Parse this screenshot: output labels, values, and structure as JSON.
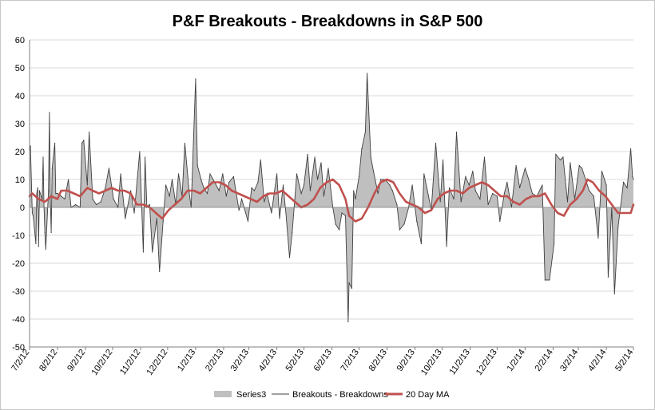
{
  "chart_data": {
    "type": "line",
    "title": "P&F Breakouts - Breakdowns in S&P 500",
    "xlabel": "",
    "ylabel": "",
    "ylim": [
      -50,
      60
    ],
    "y_ticks": [
      60,
      50,
      40,
      30,
      20,
      10,
      0,
      -10,
      -20,
      -30,
      -40,
      -50
    ],
    "x_ticks": [
      "7/2/12",
      "8/2/12",
      "9/2/12",
      "10/2/12",
      "11/2/12",
      "12/2/12",
      "1/2/13",
      "2/2/13",
      "3/2/13",
      "4/2/13",
      "5/2/13",
      "6/2/13",
      "7/2/13",
      "8/2/13",
      "9/2/13",
      "10/2/13",
      "11/2/13",
      "12/2/13",
      "1/2/14",
      "2/2/14",
      "3/2/14",
      "4/2/14",
      "5/2/14"
    ],
    "x_range": [
      "2012-07-02",
      "2014-05-02"
    ],
    "grid": "horizontal",
    "legend_position": "bottom",
    "series": [
      {
        "name": "Series3",
        "kind": "area",
        "color": "#bfbfbf",
        "note_values": "same values as Breakouts - Breakdowns"
      },
      {
        "name": "Breakouts - Breakdowns",
        "kind": "line",
        "color": "#404040",
        "points": [
          [
            "2012-07-02",
            20
          ],
          [
            "2012-07-03",
            22
          ],
          [
            "2012-07-05",
            -2
          ],
          [
            "2012-07-06",
            -3
          ],
          [
            "2012-07-09",
            -13
          ],
          [
            "2012-07-10",
            5
          ],
          [
            "2012-07-11",
            7
          ],
          [
            "2012-07-12",
            -14
          ],
          [
            "2012-07-13",
            6
          ],
          [
            "2012-07-16",
            3
          ],
          [
            "2012-07-17",
            18
          ],
          [
            "2012-07-18",
            0
          ],
          [
            "2012-07-19",
            -9
          ],
          [
            "2012-07-20",
            -15
          ],
          [
            "2012-07-23",
            6
          ],
          [
            "2012-07-24",
            34
          ],
          [
            "2012-07-25",
            3
          ],
          [
            "2012-07-26",
            -9
          ],
          [
            "2012-07-27",
            14
          ],
          [
            "2012-07-30",
            23
          ],
          [
            "2012-07-31",
            5
          ],
          [
            "2012-08-02",
            5
          ],
          [
            "2012-08-06",
            4
          ],
          [
            "2012-08-10",
            3
          ],
          [
            "2012-08-14",
            10
          ],
          [
            "2012-08-17",
            0
          ],
          [
            "2012-08-22",
            1
          ],
          [
            "2012-08-27",
            0
          ],
          [
            "2012-08-29",
            23
          ],
          [
            "2012-08-31",
            24
          ],
          [
            "2012-09-04",
            8
          ],
          [
            "2012-09-06",
            27
          ],
          [
            "2012-09-10",
            3
          ],
          [
            "2012-09-14",
            1
          ],
          [
            "2012-09-19",
            2
          ],
          [
            "2012-09-24",
            7
          ],
          [
            "2012-09-28",
            14
          ],
          [
            "2012-10-03",
            3
          ],
          [
            "2012-10-08",
            0
          ],
          [
            "2012-10-11",
            12
          ],
          [
            "2012-10-16",
            -4
          ],
          [
            "2012-10-22",
            6
          ],
          [
            "2012-10-26",
            -2
          ],
          [
            "2012-11-01",
            20
          ],
          [
            "2012-11-05",
            -16
          ],
          [
            "2012-11-07",
            18
          ],
          [
            "2012-11-09",
            0
          ],
          [
            "2012-11-12",
            1
          ],
          [
            "2012-11-15",
            -16
          ],
          [
            "2012-11-20",
            -4
          ],
          [
            "2012-11-23",
            -23
          ],
          [
            "2012-11-27",
            -5
          ],
          [
            "2012-11-30",
            8
          ],
          [
            "2012-12-04",
            4
          ],
          [
            "2012-12-07",
            10
          ],
          [
            "2012-12-11",
            1
          ],
          [
            "2012-12-14",
            12
          ],
          [
            "2012-12-18",
            4
          ],
          [
            "2012-12-21",
            23
          ],
          [
            "2012-12-26",
            5
          ],
          [
            "2012-12-28",
            0
          ],
          [
            "2013-01-02",
            46
          ],
          [
            "2013-01-04",
            15
          ],
          [
            "2013-01-08",
            10
          ],
          [
            "2013-01-11",
            7
          ],
          [
            "2013-01-15",
            5
          ],
          [
            "2013-01-18",
            12
          ],
          [
            "2013-01-23",
            9
          ],
          [
            "2013-01-28",
            6
          ],
          [
            "2013-02-01",
            12
          ],
          [
            "2013-02-05",
            4
          ],
          [
            "2013-02-08",
            9
          ],
          [
            "2013-02-13",
            11
          ],
          [
            "2013-02-19",
            -1
          ],
          [
            "2013-02-22",
            3
          ],
          [
            "2013-03-01",
            -5
          ],
          [
            "2013-03-05",
            7
          ],
          [
            "2013-03-08",
            6
          ],
          [
            "2013-03-12",
            9
          ],
          [
            "2013-03-15",
            17
          ],
          [
            "2013-03-19",
            2
          ],
          [
            "2013-03-22",
            5
          ],
          [
            "2013-03-27",
            -2
          ],
          [
            "2013-04-02",
            12
          ],
          [
            "2013-04-05",
            -4
          ],
          [
            "2013-04-09",
            8
          ],
          [
            "2013-04-12",
            -2
          ],
          [
            "2013-04-16",
            -18
          ],
          [
            "2013-04-19",
            -9
          ],
          [
            "2013-04-24",
            12
          ],
          [
            "2013-04-29",
            5
          ],
          [
            "2013-05-02",
            8
          ],
          [
            "2013-05-06",
            19
          ],
          [
            "2013-05-09",
            6
          ],
          [
            "2013-05-14",
            18
          ],
          [
            "2013-05-17",
            10
          ],
          [
            "2013-05-21",
            16
          ],
          [
            "2013-05-24",
            4
          ],
          [
            "2013-05-29",
            14
          ],
          [
            "2013-06-03",
            0
          ],
          [
            "2013-06-06",
            -6
          ],
          [
            "2013-06-10",
            -8
          ],
          [
            "2013-06-13",
            -2
          ],
          [
            "2013-06-17",
            -3
          ],
          [
            "2013-06-20",
            -41
          ],
          [
            "2013-06-21",
            -27
          ],
          [
            "2013-06-24",
            -29
          ],
          [
            "2013-06-26",
            6
          ],
          [
            "2013-06-28",
            3
          ],
          [
            "2013-07-02",
            11
          ],
          [
            "2013-07-05",
            21
          ],
          [
            "2013-07-09",
            27
          ],
          [
            "2013-07-11",
            48
          ],
          [
            "2013-07-15",
            18
          ],
          [
            "2013-07-18",
            13
          ],
          [
            "2013-07-23",
            5
          ],
          [
            "2013-07-26",
            10
          ],
          [
            "2013-07-31",
            10
          ],
          [
            "2013-08-05",
            8
          ],
          [
            "2013-08-08",
            6
          ],
          [
            "2013-08-13",
            1
          ],
          [
            "2013-08-16",
            -8
          ],
          [
            "2013-08-21",
            -6
          ],
          [
            "2013-08-26",
            0
          ],
          [
            "2013-08-30",
            8
          ],
          [
            "2013-09-04",
            -5
          ],
          [
            "2013-09-09",
            -13
          ],
          [
            "2013-09-12",
            12
          ],
          [
            "2013-09-17",
            4
          ],
          [
            "2013-09-20",
            -1
          ],
          [
            "2013-09-25",
            23
          ],
          [
            "2013-09-30",
            2
          ],
          [
            "2013-10-03",
            17
          ],
          [
            "2013-10-07",
            -14
          ],
          [
            "2013-10-10",
            7
          ],
          [
            "2013-10-15",
            3
          ],
          [
            "2013-10-18",
            27
          ],
          [
            "2013-10-23",
            2
          ],
          [
            "2013-10-28",
            11
          ],
          [
            "2013-11-01",
            8
          ],
          [
            "2013-11-05",
            13
          ],
          [
            "2013-11-08",
            6
          ],
          [
            "2013-11-13",
            3
          ],
          [
            "2013-11-18",
            18
          ],
          [
            "2013-11-22",
            1
          ],
          [
            "2013-11-27",
            5
          ],
          [
            "2013-12-02",
            4
          ],
          [
            "2013-12-05",
            -5
          ],
          [
            "2013-12-10",
            5
          ],
          [
            "2013-12-13",
            9
          ],
          [
            "2013-12-18",
            0
          ],
          [
            "2013-12-23",
            15
          ],
          [
            "2013-12-27",
            7
          ],
          [
            "2014-01-02",
            14
          ],
          [
            "2014-01-06",
            10
          ],
          [
            "2014-01-10",
            5
          ],
          [
            "2014-01-15",
            4
          ],
          [
            "2014-01-21",
            8
          ],
          [
            "2014-01-24",
            -26
          ],
          [
            "2014-01-29",
            -26
          ],
          [
            "2014-02-03",
            -13
          ],
          [
            "2014-02-05",
            19
          ],
          [
            "2014-02-10",
            17
          ],
          [
            "2014-02-13",
            18
          ],
          [
            "2014-02-18",
            2
          ],
          [
            "2014-02-21",
            16
          ],
          [
            "2014-02-26",
            3
          ],
          [
            "2014-03-03",
            15
          ],
          [
            "2014-03-06",
            14
          ],
          [
            "2014-03-11",
            9
          ],
          [
            "2014-03-14",
            6
          ],
          [
            "2014-03-19",
            4
          ],
          [
            "2014-03-24",
            -11
          ],
          [
            "2014-03-28",
            13
          ],
          [
            "2014-04-02",
            8
          ],
          [
            "2014-04-04",
            -25
          ],
          [
            "2014-04-08",
            0
          ],
          [
            "2014-04-11",
            -31
          ],
          [
            "2014-04-15",
            -7
          ],
          [
            "2014-04-21",
            9
          ],
          [
            "2014-04-25",
            7
          ],
          [
            "2014-04-29",
            21
          ],
          [
            "2014-05-01",
            11
          ],
          [
            "2014-05-02",
            10
          ]
        ]
      },
      {
        "name": "20 Day MA",
        "kind": "line",
        "color": "#c0504d",
        "points": [
          [
            "2012-07-02",
            4
          ],
          [
            "2012-07-05",
            5
          ],
          [
            "2012-07-12",
            3
          ],
          [
            "2012-07-19",
            2
          ],
          [
            "2012-07-26",
            4
          ],
          [
            "2012-08-02",
            3
          ],
          [
            "2012-08-06",
            6
          ],
          [
            "2012-08-13",
            6
          ],
          [
            "2012-08-20",
            5
          ],
          [
            "2012-08-27",
            4
          ],
          [
            "2012-09-04",
            7
          ],
          [
            "2012-09-10",
            6
          ],
          [
            "2012-09-17",
            5
          ],
          [
            "2012-09-24",
            6
          ],
          [
            "2012-10-01",
            7
          ],
          [
            "2012-10-08",
            6
          ],
          [
            "2012-10-15",
            6
          ],
          [
            "2012-10-22",
            5
          ],
          [
            "2012-10-29",
            1
          ],
          [
            "2012-11-05",
            1
          ],
          [
            "2012-11-12",
            0
          ],
          [
            "2012-11-19",
            -2
          ],
          [
            "2012-11-26",
            -4
          ],
          [
            "2012-12-03",
            -1
          ],
          [
            "2012-12-10",
            1
          ],
          [
            "2012-12-17",
            3
          ],
          [
            "2012-12-24",
            6
          ],
          [
            "2012-12-31",
            6
          ],
          [
            "2013-01-07",
            5
          ],
          [
            "2013-01-14",
            7
          ],
          [
            "2013-01-21",
            9
          ],
          [
            "2013-01-28",
            9
          ],
          [
            "2013-02-04",
            8
          ],
          [
            "2013-02-11",
            6
          ],
          [
            "2013-02-18",
            5
          ],
          [
            "2013-02-25",
            4
          ],
          [
            "2013-03-04",
            3
          ],
          [
            "2013-03-11",
            2
          ],
          [
            "2013-03-18",
            4
          ],
          [
            "2013-03-25",
            5
          ],
          [
            "2013-04-01",
            5
          ],
          [
            "2013-04-08",
            6
          ],
          [
            "2013-04-15",
            4
          ],
          [
            "2013-04-22",
            2
          ],
          [
            "2013-04-29",
            0
          ],
          [
            "2013-05-06",
            1
          ],
          [
            "2013-05-13",
            3
          ],
          [
            "2013-05-20",
            7
          ],
          [
            "2013-05-27",
            9
          ],
          [
            "2013-06-03",
            10
          ],
          [
            "2013-06-10",
            8
          ],
          [
            "2013-06-17",
            3
          ],
          [
            "2013-06-21",
            -3
          ],
          [
            "2013-06-28",
            -5
          ],
          [
            "2013-07-05",
            -4
          ],
          [
            "2013-07-12",
            0
          ],
          [
            "2013-07-19",
            5
          ],
          [
            "2013-07-26",
            9
          ],
          [
            "2013-08-02",
            10
          ],
          [
            "2013-08-09",
            9
          ],
          [
            "2013-08-16",
            5
          ],
          [
            "2013-08-23",
            2
          ],
          [
            "2013-08-30",
            1
          ],
          [
            "2013-09-06",
            0
          ],
          [
            "2013-09-13",
            -2
          ],
          [
            "2013-09-20",
            -1
          ],
          [
            "2013-09-27",
            3
          ],
          [
            "2013-10-04",
            5
          ],
          [
            "2013-10-11",
            6
          ],
          [
            "2013-10-18",
            6
          ],
          [
            "2013-10-25",
            5
          ],
          [
            "2013-11-01",
            7
          ],
          [
            "2013-11-08",
            8
          ],
          [
            "2013-11-15",
            9
          ],
          [
            "2013-11-22",
            8
          ],
          [
            "2013-11-29",
            6
          ],
          [
            "2013-12-06",
            4
          ],
          [
            "2013-12-13",
            4
          ],
          [
            "2013-12-20",
            2
          ],
          [
            "2013-12-27",
            1
          ],
          [
            "2014-01-03",
            3
          ],
          [
            "2014-01-10",
            4
          ],
          [
            "2014-01-17",
            4
          ],
          [
            "2014-01-24",
            5
          ],
          [
            "2014-01-31",
            1
          ],
          [
            "2014-02-07",
            -2
          ],
          [
            "2014-02-14",
            -3
          ],
          [
            "2014-02-21",
            1
          ],
          [
            "2014-02-28",
            3
          ],
          [
            "2014-03-07",
            6
          ],
          [
            "2014-03-12",
            10
          ],
          [
            "2014-03-18",
            9
          ],
          [
            "2014-03-25",
            6
          ],
          [
            "2014-04-01",
            4
          ],
          [
            "2014-04-08",
            1
          ],
          [
            "2014-04-15",
            -2
          ],
          [
            "2014-04-22",
            -2
          ],
          [
            "2014-04-29",
            -2
          ],
          [
            "2014-05-02",
            1
          ]
        ]
      }
    ]
  }
}
